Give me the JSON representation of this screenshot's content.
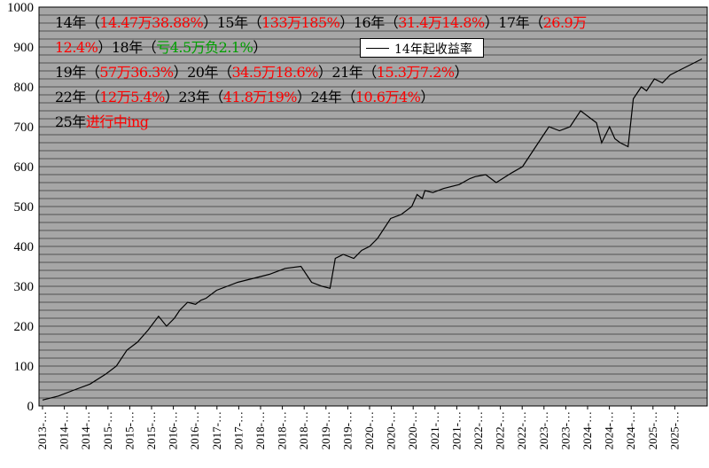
{
  "chart_data": {
    "type": "line",
    "title": "",
    "xlabel": "",
    "ylabel": "",
    "ylim": [
      0,
      1000
    ],
    "y_ticks": [
      0,
      100,
      200,
      300,
      400,
      500,
      600,
      700,
      800,
      900,
      1000
    ],
    "x_tick_labels": [
      "2013-…",
      "2014-…",
      "2014-…",
      "2015-…",
      "2015-…",
      "2015-…",
      "2016-…",
      "2016-…",
      "2017-…",
      "2017-…",
      "2018-…",
      "2018-…",
      "2018-…",
      "2019-…",
      "2019-…",
      "2020-…",
      "2020-…",
      "2020-…",
      "2021-…",
      "2021-…",
      "2022-…",
      "2022-…",
      "2022-…",
      "2023-…",
      "2023-…",
      "2024-…",
      "2024-…",
      "2024-…",
      "2025-…",
      "2025-…"
    ],
    "grid": "horizontal",
    "background": "#a6a6a6",
    "legend_position": "top-center",
    "series": [
      {
        "name": "14年起收益率",
        "color": "#000000",
        "x": [
          2013.0,
          2013.3,
          2013.6,
          2013.9,
          2014.2,
          2014.4,
          2014.6,
          2014.8,
          2015.0,
          2015.2,
          2015.35,
          2015.5,
          2015.6,
          2015.75,
          2015.9,
          2016.0,
          2016.1,
          2016.3,
          2016.5,
          2016.7,
          2017.0,
          2017.3,
          2017.6,
          2017.9,
          2018.1,
          2018.3,
          2018.45,
          2018.55,
          2018.7,
          2018.9,
          2019.05,
          2019.2,
          2019.35,
          2019.6,
          2019.8,
          2020.0,
          2020.1,
          2020.2,
          2020.25,
          2020.4,
          2020.6,
          2020.9,
          2021.1,
          2021.2,
          2021.4,
          2021.6,
          2021.9,
          2022.1,
          2022.3,
          2022.5,
          2022.6,
          2022.8,
          2023.0,
          2023.2,
          2023.4,
          2023.5,
          2023.6,
          2023.75,
          2023.85,
          2023.95,
          2024.1,
          2024.2,
          2024.35,
          2024.45,
          2024.6,
          2024.75,
          2024.9,
          2025.05,
          2025.2,
          2025.35,
          2025.5
        ],
        "y": [
          15,
          25,
          40,
          55,
          80,
          100,
          140,
          160,
          190,
          225,
          200,
          220,
          240,
          260,
          255,
          265,
          270,
          290,
          300,
          310,
          320,
          330,
          345,
          350,
          310,
          300,
          295,
          370,
          380,
          370,
          390,
          400,
          420,
          470,
          480,
          500,
          530,
          520,
          540,
          535,
          545,
          555,
          570,
          575,
          580,
          560,
          585,
          600,
          640,
          680,
          700,
          690,
          700,
          740,
          720,
          710,
          660,
          700,
          670,
          660,
          650,
          770,
          800,
          790,
          820,
          810,
          830,
          840,
          850,
          860,
          870
        ]
      }
    ]
  },
  "annotations": [
    [
      [
        "14年（",
        "k"
      ],
      [
        "14.47万38.88%",
        "r"
      ],
      [
        "）15年（",
        "k"
      ],
      [
        "133万185%",
        "r"
      ],
      [
        "）16年（",
        "k"
      ],
      [
        "31.4万14.8%",
        "r"
      ],
      [
        "）17年（",
        "k"
      ],
      [
        "26.9万",
        "r"
      ]
    ],
    [
      [
        "12.4%",
        "r"
      ],
      [
        "）18年（",
        "k"
      ],
      [
        "亏4.5万负2.1%",
        "g"
      ],
      [
        "）",
        "k"
      ]
    ],
    [
      [
        "19年（",
        "k"
      ],
      [
        "57万36.3%",
        "r"
      ],
      [
        "）20年（",
        "k"
      ],
      [
        "34.5万18.6%",
        "r"
      ],
      [
        "）21年（",
        "k"
      ],
      [
        "15.3万7.2%",
        "r"
      ],
      [
        "）",
        "k"
      ]
    ],
    [
      [
        "22年（",
        "k"
      ],
      [
        "12万5.4%",
        "r"
      ],
      [
        "）23年（",
        "k"
      ],
      [
        "41.8万19%",
        "r"
      ],
      [
        "）24年（",
        "k"
      ],
      [
        "10.6万4%",
        "r"
      ],
      [
        "）",
        "k"
      ]
    ],
    [
      [
        "25年",
        "k"
      ],
      [
        "进行中ing",
        "r"
      ]
    ]
  ],
  "legend": {
    "label": "14年起收益率"
  }
}
